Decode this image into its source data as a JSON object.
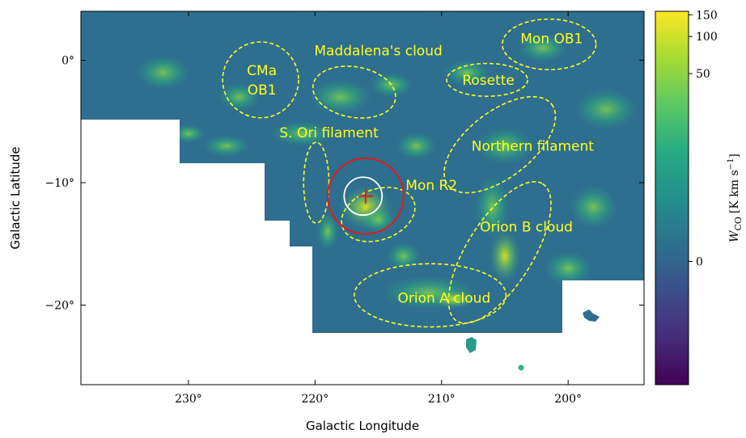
{
  "chart_data": {
    "type": "heatmap",
    "title": "",
    "xlabel": "Galactic Longitude",
    "ylabel": "Galactic Latitude",
    "xlim": [
      238.5,
      194.0
    ],
    "ylim": [
      -26.5,
      4.0
    ],
    "x_ticks": [
      {
        "value": 230,
        "label": "230°"
      },
      {
        "value": 220,
        "label": "220°"
      },
      {
        "value": 210,
        "label": "210°"
      },
      {
        "value": 200,
        "label": "200°"
      }
    ],
    "y_ticks": [
      {
        "value": 0,
        "label": "0°"
      },
      {
        "value": -10,
        "label": "−10°"
      },
      {
        "value": -20,
        "label": "−20°"
      }
    ],
    "colorbar": {
      "label": "W",
      "label_sub": "CO",
      "label_unit": "[K km s",
      "label_unit_sup": "−1",
      "label_close": "]",
      "colormap": "viridis",
      "ticks": [
        {
          "value": 150,
          "label": "150"
        },
        {
          "value": 100,
          "label": "100"
        },
        {
          "value": 50,
          "label": "50"
        },
        {
          "value": 0,
          "label": "0"
        }
      ]
    },
    "regions": [
      {
        "name": "CMa OB1",
        "lines": [
          "CMa",
          "OB1"
        ],
        "l": 224.3,
        "b": -1.6,
        "rl": 3.0,
        "rb": 3.0,
        "angle": 0
      },
      {
        "name": "Maddalena's cloud",
        "lines": [
          "Maddalena's cloud"
        ],
        "l": 216.9,
        "b": -2.6,
        "rl": 3.3,
        "rb": 2.0,
        "angle": 10
      },
      {
        "name": "Mon OB1",
        "lines": [
          "Mon OB1"
        ],
        "l": 201.5,
        "b": 1.3,
        "rl": 3.7,
        "rb": 2.0,
        "angle": 0
      },
      {
        "name": "Rosette",
        "lines": [
          "Rosette"
        ],
        "l": 206.4,
        "b": -1.6,
        "rl": 3.2,
        "rb": 1.3,
        "angle": 0
      },
      {
        "name": "Northern filament",
        "lines": [
          "Northern filament"
        ],
        "l": 205.4,
        "b": -6.9,
        "rl": 5.2,
        "rb": 2.6,
        "angle": -38
      },
      {
        "name": "S. Ori filament",
        "lines": [
          "S. Ori filament"
        ],
        "l": 219.9,
        "b": -10.0,
        "rl": 1.0,
        "rb": 3.2,
        "angle": 0
      },
      {
        "name": "Mon R2",
        "lines": [
          "Mon R2"
        ],
        "l": 215.0,
        "b": -12.6,
        "rl": 3.0,
        "rb": 2.0,
        "angle": -20
      },
      {
        "name": "Orion B cloud",
        "lines": [
          "Orion B cloud"
        ],
        "l": 205.4,
        "b": -15.7,
        "rl": 6.4,
        "rb": 2.6,
        "angle": -58
      },
      {
        "name": "Orion A cloud",
        "lines": [
          "Orion A cloud"
        ],
        "l": 210.9,
        "b": -19.2,
        "rl": 6.0,
        "rb": 2.5,
        "angle": 0
      }
    ],
    "region_label_positions": [
      {
        "name": "CMa OB1",
        "l": 224.2,
        "b": -1.6
      },
      {
        "name": "Maddalena's cloud",
        "l": 215.0,
        "b": 0.8
      },
      {
        "name": "Mon OB1",
        "l": 201.3,
        "b": 1.8
      },
      {
        "name": "Rosette",
        "l": 206.3,
        "b": -1.6
      },
      {
        "name": "Northern filament",
        "l": 202.8,
        "b": -7.0
      },
      {
        "name": "S. Ori filament",
        "l": 218.9,
        "b": -5.9
      },
      {
        "name": "Mon R2",
        "l": 210.8,
        "b": -10.2
      },
      {
        "name": "Orion B cloud",
        "l": 203.3,
        "b": -13.6
      },
      {
        "name": "Orion A cloud",
        "l": 209.8,
        "b": -19.4
      }
    ],
    "markers": {
      "red_circle": {
        "l": 216.0,
        "b": -11.1,
        "r_l": 3.0
      },
      "white_circle": {
        "l": 216.2,
        "b": -11.1,
        "r_l": 1.5
      },
      "cross": {
        "l": 216.0,
        "b": -11.1
      }
    }
  }
}
